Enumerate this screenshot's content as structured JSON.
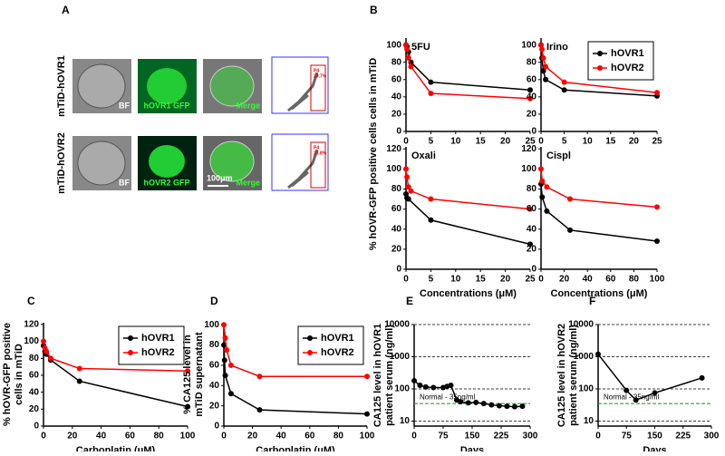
{
  "panel_labels": [
    "A",
    "B",
    "C",
    "D",
    "E",
    "F"
  ],
  "images": {
    "rows": [
      "mTiD-hOVR1",
      "mTiD-hOVR2"
    ],
    "tiles": [
      [
        "BF",
        "hOVR1 GFP",
        "Merge"
      ],
      [
        "BF",
        "hOVR2 GFP",
        "Merge"
      ]
    ],
    "scale_bar": "100μm",
    "gates": [
      [
        "P4",
        "29.7%"
      ],
      [
        "P4",
        "23.8%"
      ]
    ]
  },
  "chart_data": [
    {
      "type": "line",
      "title": "5FU",
      "ylabel": "% hOVR-GFP positive cells cells in mTiD",
      "xlim": [
        0,
        25
      ],
      "xticks": [
        0,
        5,
        10,
        15,
        20,
        25
      ],
      "ylim": [
        0,
        108
      ],
      "yticks": [
        0,
        20,
        40,
        60,
        80,
        100
      ],
      "series": [
        {
          "name": "hOVR1",
          "color": "#000000",
          "x": [
            0,
            0.2,
            0.5,
            1,
            5,
            25
          ],
          "values": [
            100,
            98,
            92,
            80,
            57,
            48
          ]
        },
        {
          "name": "hOVR2",
          "color": "#ff0000",
          "x": [
            0,
            0.2,
            0.5,
            1,
            5,
            25
          ],
          "values": [
            100,
            95,
            85,
            75,
            44,
            38
          ]
        }
      ]
    },
    {
      "type": "line",
      "title": "Irino",
      "legend": "upper right",
      "xlim": [
        0,
        25
      ],
      "xticks": [
        0,
        5,
        10,
        15,
        20,
        25
      ],
      "ylim": [
        0,
        108
      ],
      "yticks": [
        0,
        20,
        40,
        60,
        80,
        100
      ],
      "series": [
        {
          "name": "hOVR1",
          "color": "#000000",
          "x": [
            0,
            0.2,
            0.5,
            1,
            5,
            25
          ],
          "values": [
            100,
            85,
            70,
            60,
            48,
            41
          ]
        },
        {
          "name": "hOVR2",
          "color": "#ff0000",
          "x": [
            0,
            0.2,
            0.5,
            1,
            5,
            25
          ],
          "values": [
            100,
            95,
            85,
            75,
            57,
            45
          ]
        }
      ]
    },
    {
      "type": "line",
      "title": "Oxali",
      "xlabel": "Concentrations (μM)",
      "xlim": [
        0,
        25
      ],
      "xticks": [
        0,
        5,
        10,
        15,
        20,
        25
      ],
      "ylim": [
        0,
        122
      ],
      "yticks": [
        0,
        20,
        40,
        60,
        80,
        100,
        120
      ],
      "series": [
        {
          "name": "hOVR1",
          "color": "#000000",
          "x": [
            0,
            0.2,
            0.5,
            5,
            25
          ],
          "values": [
            75,
            71,
            70,
            49,
            25
          ]
        },
        {
          "name": "hOVR2",
          "color": "#ff0000",
          "x": [
            0,
            0.2,
            0.5,
            1,
            5,
            25
          ],
          "values": [
            100,
            92,
            82,
            78,
            70,
            60
          ]
        }
      ]
    },
    {
      "type": "line",
      "title": "Cispl",
      "xlabel": "Concentrations (μM)",
      "xlim": [
        0,
        100
      ],
      "xticks": [
        0,
        20,
        40,
        60,
        80,
        100
      ],
      "ylim": [
        0,
        122
      ],
      "yticks": [
        0,
        20,
        40,
        60,
        80,
        100,
        120
      ],
      "series": [
        {
          "name": "hOVR1",
          "color": "#000000",
          "x": [
            0,
            1,
            5,
            25,
            100
          ],
          "values": [
            85,
            72,
            58,
            39,
            28
          ]
        },
        {
          "name": "hOVR2",
          "color": "#ff0000",
          "x": [
            0,
            1,
            5,
            25,
            100
          ],
          "values": [
            100,
            88,
            82,
            70,
            62
          ]
        }
      ]
    },
    {
      "type": "line",
      "ylabel": [
        "% hOVR-GFP positive",
        "cells in mTiD"
      ],
      "xlabel": "Carboplatin (μM)",
      "legend": "upper right",
      "xlim": [
        0,
        100
      ],
      "xticks": [
        0,
        20,
        40,
        60,
        80,
        100
      ],
      "ylim": [
        0,
        122
      ],
      "yticks": [
        0,
        20,
        40,
        60,
        80,
        100,
        120
      ],
      "series": [
        {
          "name": "hOVR1",
          "color": "#000000",
          "x": [
            0,
            1,
            2,
            5,
            25,
            100
          ],
          "values": [
            95,
            88,
            85,
            78,
            53,
            23
          ]
        },
        {
          "name": "hOVR2",
          "color": "#ff0000",
          "x": [
            0,
            1,
            2,
            5,
            25,
            100
          ],
          "values": [
            100,
            92,
            88,
            80,
            68,
            65
          ]
        }
      ]
    },
    {
      "type": "line",
      "ylabel": [
        "% CA125 level in",
        "mTiD supernatant"
      ],
      "xlabel": "Carboplatin (μM)",
      "legend": "upper right",
      "xlim": [
        0,
        100
      ],
      "xticks": [
        0,
        20,
        40,
        60,
        80,
        100
      ],
      "ylim": [
        0,
        102
      ],
      "yticks": [
        0,
        20,
        40,
        60,
        80,
        100
      ],
      "series": [
        {
          "name": "hOVR1",
          "color": "#000000",
          "x": [
            0,
            0.5,
            1,
            5,
            25,
            100
          ],
          "values": [
            80,
            65,
            50,
            32,
            16,
            12
          ]
        },
        {
          "name": "hOVR2",
          "color": "#ff0000",
          "x": [
            0,
            1,
            2,
            5,
            25,
            100
          ],
          "values": [
            100,
            87,
            75,
            60,
            49,
            49
          ]
        }
      ]
    },
    {
      "type": "line",
      "ylabel": [
        "CA125 level in hOVR1",
        "patient serum (ng/ml)"
      ],
      "xlabel": "Days",
      "log_y": true,
      "grid": true,
      "xlim": [
        0,
        300
      ],
      "xticks": [
        0,
        75,
        150,
        225,
        300
      ],
      "ylim": [
        7,
        10000
      ],
      "yticks": [
        10,
        100,
        1000,
        10000
      ],
      "reference_line": {
        "value": 35,
        "label": "Normal - 35ng/ml",
        "color": "#2ca02c"
      },
      "series": [
        {
          "name": "hOVR1",
          "color": "#000000",
          "x": [
            0,
            15,
            30,
            50,
            75,
            85,
            95,
            110,
            120,
            140,
            160,
            180,
            200,
            220,
            240,
            260,
            280
          ],
          "values": [
            180,
            130,
            115,
            110,
            110,
            120,
            130,
            45,
            40,
            37,
            38,
            35,
            32,
            30,
            29,
            28,
            29
          ]
        }
      ]
    },
    {
      "type": "line",
      "ylabel": [
        "CA125 level in hOVR2",
        "patient serum (ng/ml)"
      ],
      "xlabel": "Days",
      "log_y": true,
      "grid": true,
      "xlim": [
        0,
        300
      ],
      "xticks": [
        0,
        75,
        150,
        225,
        300
      ],
      "ylim": [
        7,
        10000
      ],
      "yticks": [
        10,
        100,
        1000,
        10000
      ],
      "reference_line": {
        "value": 35,
        "label": "Normal - 35ng/ml",
        "color": "#2ca02c"
      },
      "series": [
        {
          "name": "hOVR2",
          "color": "#000000",
          "x": [
            0,
            75,
            100,
            150,
            275
          ],
          "values": [
            1200,
            90,
            45,
            75,
            220
          ]
        }
      ]
    }
  ]
}
